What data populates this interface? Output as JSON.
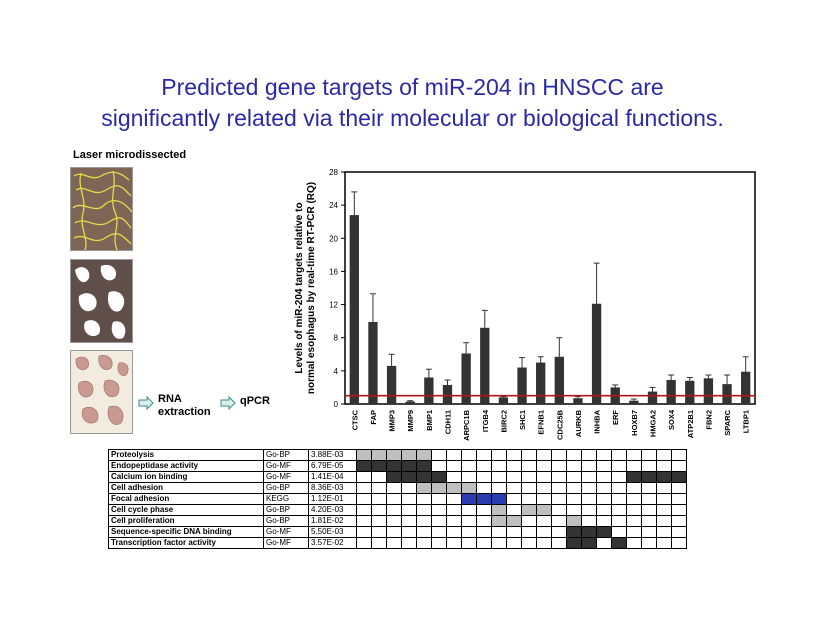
{
  "title": {
    "line1": "Predicted gene targets of miR-204 in HNSCC are",
    "line2": "significantly related via their molecular or biological functions."
  },
  "left_panel": {
    "label": "Laser microdissected",
    "rna_label_1": "RNA",
    "rna_label_2": "extraction",
    "qpcr_label": "qPCR"
  },
  "chart_data": {
    "type": "bar",
    "title": "",
    "xlabel": "",
    "ylabel_line1": "Levels of miR-204 targets relative to",
    "ylabel_line2": "normal esophagus by real-time RT-PCR (RQ)",
    "ylim": [
      0,
      28
    ],
    "yticks": [
      "0",
      "4",
      "8",
      "12",
      "16",
      "20",
      "24",
      "28"
    ],
    "reference_line": 1,
    "reference_color": "#b01818",
    "bar_color": "#333333",
    "categories": [
      "CTSC",
      "FAP",
      "MMP3",
      "MMP9",
      "BMP1",
      "CDH11",
      "ARPC1B",
      "ITGB4",
      "BIRC2",
      "SHC1",
      "EFNB1",
      "CDC25B",
      "AURKB",
      "INHBA",
      "ERF",
      "HOXB7",
      "HMGA2",
      "SOX4",
      "ATP2B1",
      "FBN2",
      "SPARC",
      "LTBP1"
    ],
    "values": [
      22.8,
      9.9,
      4.6,
      0.3,
      3.2,
      2.3,
      6.1,
      9.2,
      0.8,
      4.4,
      5.0,
      5.7,
      0.7,
      12.1,
      2.0,
      0.4,
      1.5,
      2.9,
      2.8,
      3.1,
      2.4,
      3.9
    ],
    "errors": [
      2.8,
      3.4,
      1.4,
      0.1,
      1.0,
      0.6,
      1.3,
      2.1,
      0.1,
      1.2,
      0.7,
      2.3,
      0.2,
      4.9,
      0.3,
      0.2,
      0.5,
      0.6,
      0.4,
      0.4,
      1.1,
      1.8
    ],
    "grid": false
  },
  "table": {
    "rows": [
      {
        "term": "Proteolysis",
        "db": "Go-BP",
        "pval": "3.88E-03",
        "cells": [
          2,
          2,
          2,
          2,
          2,
          0,
          0,
          0,
          0,
          0,
          0,
          0,
          0,
          0,
          0,
          0,
          0,
          0,
          0,
          0,
          0,
          0
        ]
      },
      {
        "term": "Endopeptidase activity",
        "db": "Go-MF",
        "pval": "6.79E-05",
        "cells": [
          1,
          1,
          1,
          1,
          1,
          0,
          0,
          0,
          0,
          0,
          0,
          0,
          0,
          0,
          0,
          0,
          0,
          0,
          0,
          0,
          0,
          0
        ]
      },
      {
        "term": "Calcium ion binding",
        "db": "Go-MF",
        "pval": "1.41E-04",
        "cells": [
          0,
          0,
          1,
          1,
          1,
          1,
          0,
          0,
          0,
          0,
          0,
          0,
          0,
          0,
          0,
          0,
          0,
          0,
          1,
          1,
          1,
          1
        ]
      },
      {
        "term": "Cell adhesion",
        "db": "Go-BP",
        "pval": "8.36E-03",
        "cells": [
          0,
          0,
          0,
          0,
          2,
          2,
          2,
          2,
          0,
          0,
          0,
          0,
          0,
          0,
          0,
          0,
          0,
          0,
          0,
          0,
          0,
          0
        ]
      },
      {
        "term": "Focal adhesion",
        "db": "KEGG",
        "pval": "1.12E-01",
        "cells": [
          0,
          0,
          0,
          0,
          0,
          0,
          0,
          3,
          3,
          3,
          0,
          0,
          0,
          0,
          0,
          0,
          0,
          0,
          0,
          0,
          0,
          0
        ]
      },
      {
        "term": "Cell cycle phase",
        "db": "Go-BP",
        "pval": "4.20E-03",
        "cells": [
          0,
          0,
          0,
          0,
          0,
          0,
          0,
          0,
          0,
          2,
          0,
          2,
          2,
          0,
          0,
          0,
          0,
          0,
          0,
          0,
          0,
          0
        ]
      },
      {
        "term": "Cell proliferation",
        "db": "Go-BP",
        "pval": "1.81E-02",
        "cells": [
          0,
          0,
          0,
          0,
          0,
          0,
          0,
          0,
          0,
          2,
          2,
          0,
          0,
          0,
          2,
          0,
          0,
          0,
          0,
          0,
          0,
          0
        ]
      },
      {
        "term": "Sequence-specific DNA binding",
        "db": "Go-MF",
        "pval": "5.50E-03",
        "cells": [
          0,
          0,
          0,
          0,
          0,
          0,
          0,
          0,
          0,
          0,
          0,
          0,
          0,
          0,
          1,
          1,
          1,
          0,
          0,
          0,
          0,
          0
        ]
      },
      {
        "term": "Transcription factor activity",
        "db": "Go-MF",
        "pval": "3.57E-02",
        "cells": [
          0,
          0,
          0,
          0,
          0,
          0,
          0,
          0,
          0,
          0,
          0,
          0,
          0,
          0,
          1,
          1,
          0,
          1,
          0,
          0,
          0,
          0
        ]
      }
    ],
    "colors": [
      "#ffffff",
      "#333333",
      "#bfbfbf",
      "#2a3cb0"
    ]
  }
}
